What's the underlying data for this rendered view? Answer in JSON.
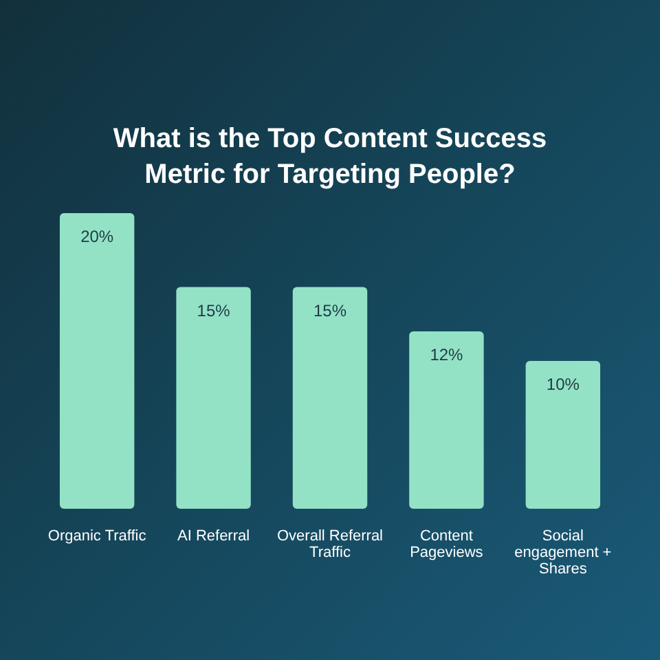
{
  "chart_data": {
    "type": "bar",
    "title": "What is the Top Content Success Metric for Targeting People?",
    "categories": [
      "Organic Traffic",
      "AI Referral",
      "Overall Referral Traffic",
      "Content Pageviews",
      "Social engagement + Shares"
    ],
    "values": [
      20,
      15,
      15,
      12,
      10
    ],
    "value_labels": [
      "20%",
      "15%",
      "15%",
      "12%",
      "10%"
    ],
    "color": "#93e2c6"
  }
}
